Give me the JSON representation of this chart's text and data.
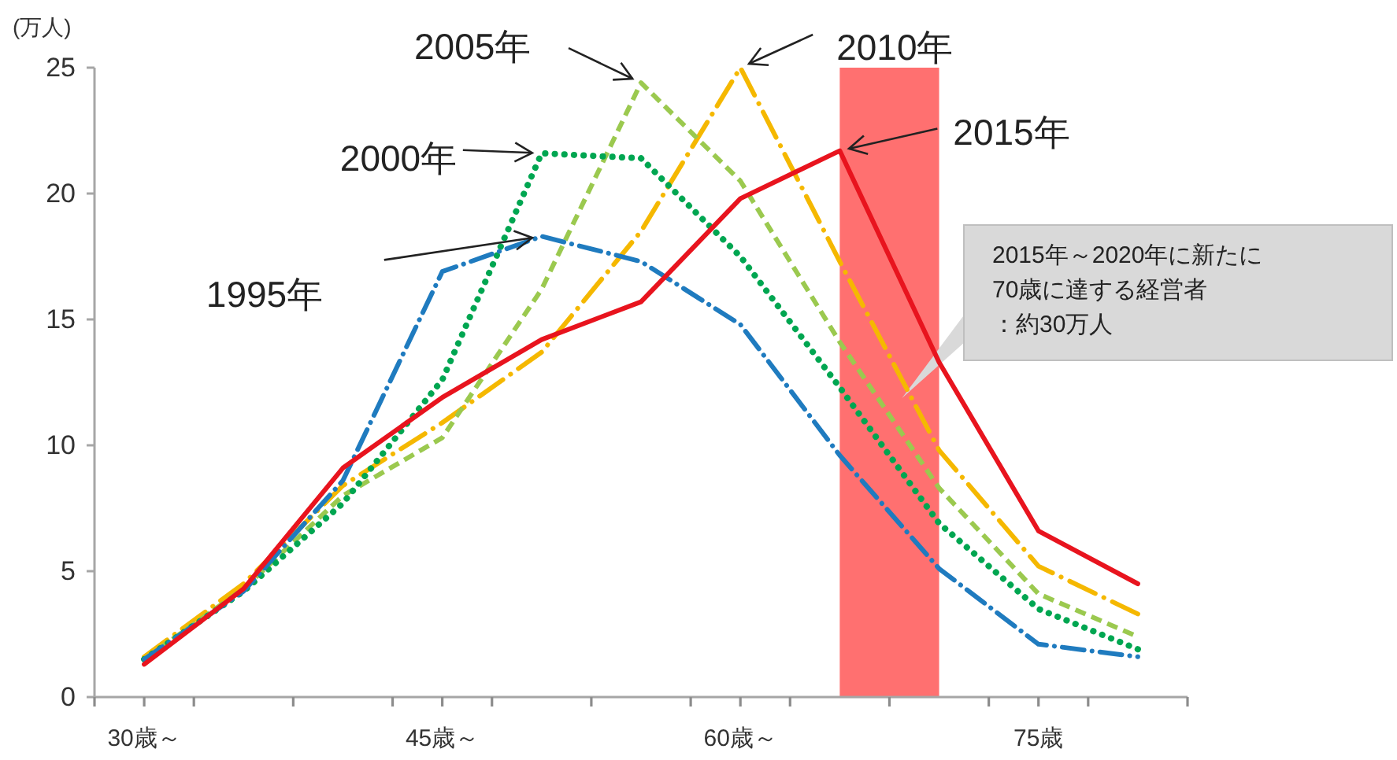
{
  "chart_data": {
    "type": "line",
    "ylabel": "(万人)",
    "xlim": [
      27.5,
      82.5
    ],
    "xticks": [
      {
        "value": 27.5,
        "label": null
      },
      {
        "value": 30,
        "label": "30歳～"
      },
      {
        "value": 32.5,
        "label": null
      },
      {
        "value": 37.5,
        "label": null
      },
      {
        "value": 42.5,
        "label": null
      },
      {
        "value": 45,
        "label": "45歳～"
      },
      {
        "value": 47.5,
        "label": null
      },
      {
        "value": 52.5,
        "label": null
      },
      {
        "value": 57.5,
        "label": null
      },
      {
        "value": 60,
        "label": "60歳～"
      },
      {
        "value": 62.5,
        "label": null
      },
      {
        "value": 67.5,
        "label": null
      },
      {
        "value": 72.5,
        "label": null
      },
      {
        "value": 75,
        "label": "75歳"
      },
      {
        "value": 77.5,
        "label": null
      },
      {
        "value": 82.5,
        "label": null
      }
    ],
    "ylim": [
      0,
      25
    ],
    "yticks": [
      0,
      5,
      10,
      15,
      20,
      25
    ],
    "x": [
      30,
      35,
      40,
      45,
      50,
      55,
      60,
      65,
      70,
      75,
      80
    ],
    "series": [
      {
        "name": "1995年",
        "color": "#1f7bbf",
        "line_style": "dashdot",
        "values": [
          1.5,
          4.2,
          8.6,
          16.9,
          18.3,
          17.3,
          14.8,
          9.6,
          5.1,
          2.1,
          1.6
        ]
      },
      {
        "name": "2000年",
        "color": "#00a651",
        "line_style": "dotted",
        "values": [
          1.5,
          4.2,
          7.7,
          12.6,
          21.6,
          21.4,
          17.5,
          12.3,
          6.9,
          3.5,
          1.9
        ]
      },
      {
        "name": "2005年",
        "color": "#9bc94f",
        "line_style": "dashed",
        "values": [
          1.5,
          4.3,
          8.0,
          10.3,
          16.2,
          24.4,
          20.5,
          14.1,
          8.3,
          4.1,
          2.4
        ]
      },
      {
        "name": "2010年",
        "color": "#f5b800",
        "line_style": "longdashdot",
        "values": [
          1.6,
          4.5,
          8.4,
          10.9,
          13.7,
          18.5,
          25.0,
          17.3,
          9.8,
          5.2,
          3.3
        ]
      },
      {
        "name": "2015年",
        "color": "#e8141e",
        "line_style": "solid",
        "values": [
          1.3,
          4.3,
          9.1,
          11.9,
          14.2,
          15.7,
          19.8,
          21.7,
          13.3,
          6.6,
          4.5
        ]
      }
    ],
    "bands": [
      {
        "axis": "x",
        "from": 65,
        "to": 70,
        "color": "#ff7070"
      }
    ],
    "annotations": [
      "2015年～2020年に新たに70歳に達する経営者：約30万人"
    ],
    "legend": false,
    "grid": false
  }
}
